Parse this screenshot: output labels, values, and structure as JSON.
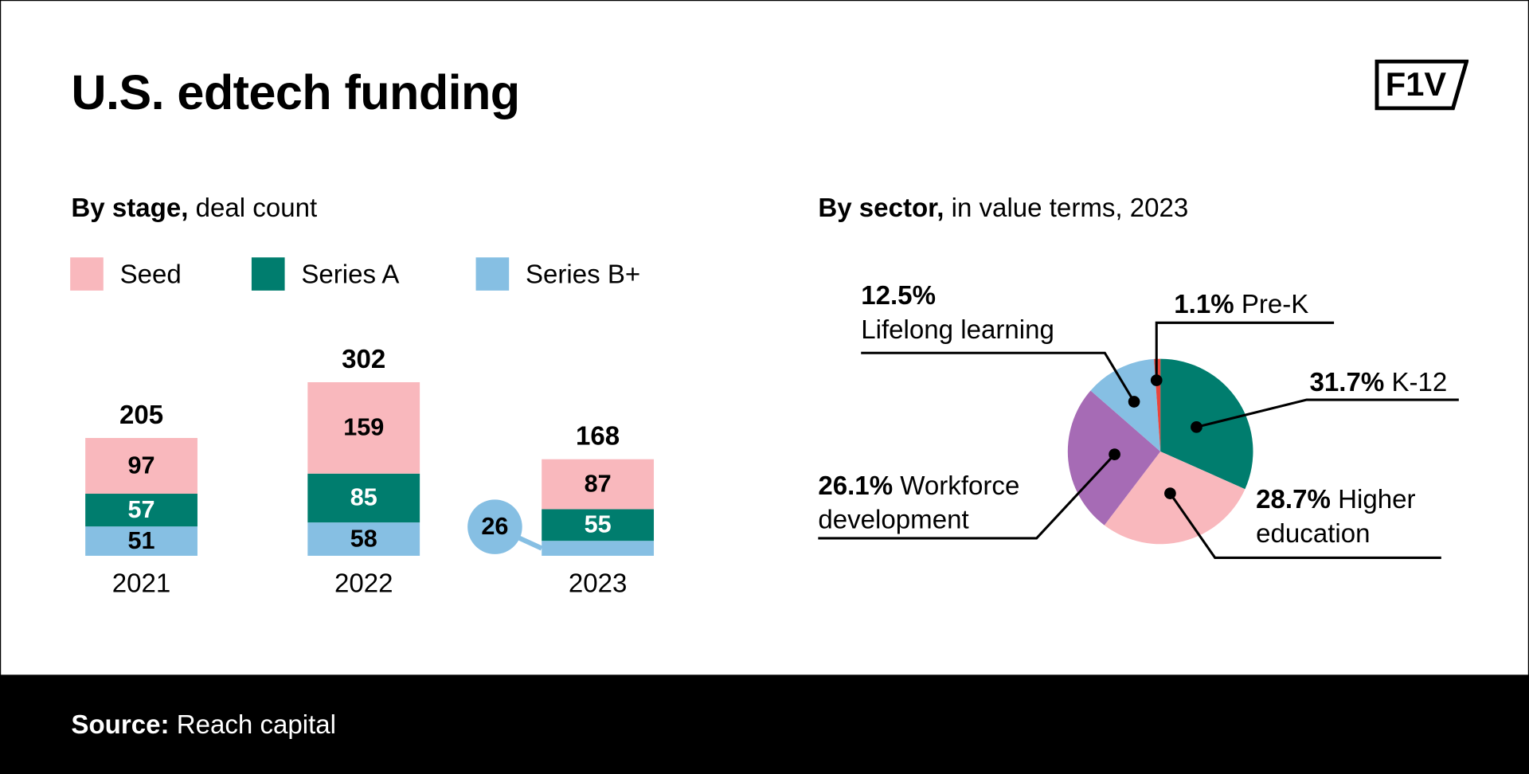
{
  "title": "U.S. edtech funding",
  "logo": "F1V",
  "source_label": "Source:",
  "source": "Reach capital",
  "chart_data": [
    {
      "type": "stacked-bar",
      "title": "By stage,",
      "subtitle": "deal count",
      "categories": [
        "2021",
        "2022",
        "2023"
      ],
      "series": [
        {
          "name": "Series B+",
          "color": "#86bfe3",
          "values": [
            51,
            58,
            26
          ]
        },
        {
          "name": "Series A",
          "color": "#007d6e",
          "values": [
            57,
            85,
            55
          ]
        },
        {
          "name": "Seed",
          "color": "#f9b8bd",
          "values": [
            97,
            159,
            87
          ]
        }
      ],
      "totals": [
        205,
        302,
        168
      ],
      "legend_order": [
        2,
        1,
        0
      ]
    },
    {
      "type": "pie",
      "title": "By sector,",
      "subtitle": "in value terms, 2023",
      "categories": [
        "K-12",
        "Higher education",
        "Workforce development",
        "Lifelong learning",
        "Pre-K"
      ],
      "values": [
        31.7,
        28.7,
        26.1,
        12.5,
        1.1
      ],
      "value_labels": [
        "31.7%",
        "28.7%",
        "26.1%",
        "12.5%",
        "1.1%"
      ],
      "colors": [
        "#007d6e",
        "#f9b8bd",
        "#a66bb5",
        "#86bfe3",
        "#e8453c"
      ]
    }
  ]
}
